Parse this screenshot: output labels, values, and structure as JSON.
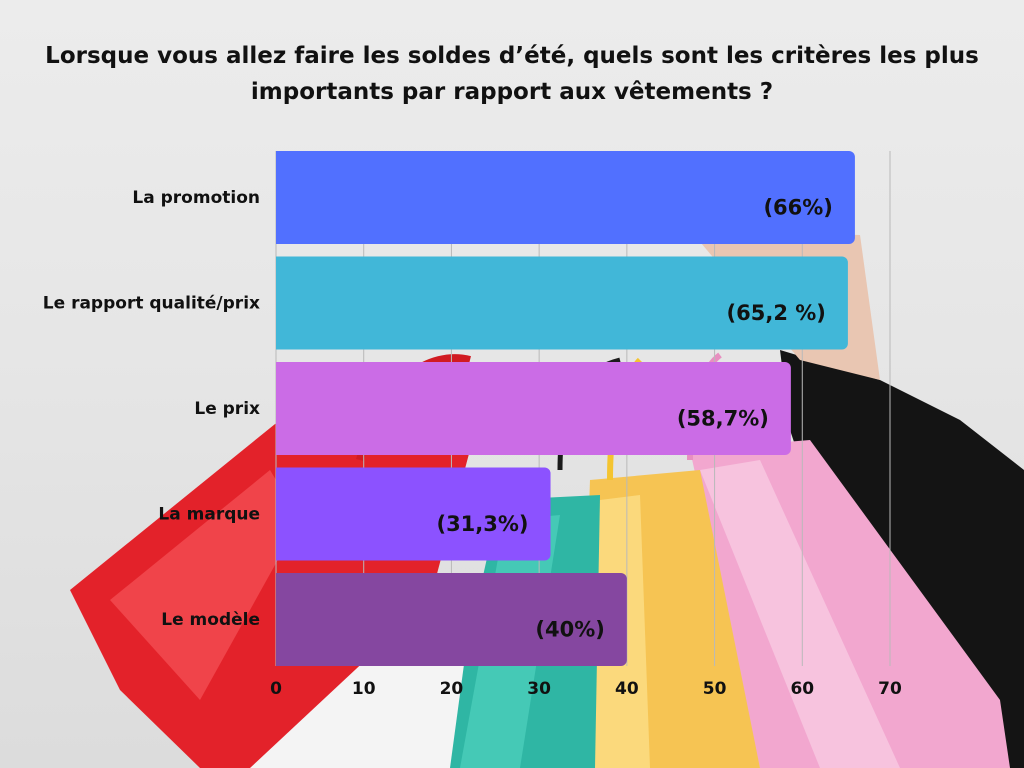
{
  "title_lines": [
    "Lorsque vous allez faire les soldes d’été, quels sont les critères les plus",
    "importants par rapport aux vêtements ?"
  ],
  "chart_data": {
    "type": "bar",
    "orientation": "horizontal",
    "categories": [
      "La promotion",
      "Le rapport qualité/prix",
      "Le prix",
      "La marque",
      "Le modèle"
    ],
    "values": [
      66,
      65.2,
      58.7,
      31.3,
      40
    ],
    "data_labels": [
      "(66%)",
      "(65,2 %)",
      "(58,7%)",
      "(31,3%)",
      "(40%)"
    ],
    "bar_colors": [
      "#5170ff",
      "#41b7d8",
      "#cb6ce6",
      "#8c52ff",
      "#8547a0"
    ],
    "xlim": [
      0,
      70
    ],
    "xticks": [
      0,
      10,
      20,
      30,
      40,
      50,
      60,
      70
    ],
    "grid": true,
    "title": "Lorsque vous allez faire les soldes d’été, quels sont les critères les plus importants par rapport aux vêtements ?"
  }
}
